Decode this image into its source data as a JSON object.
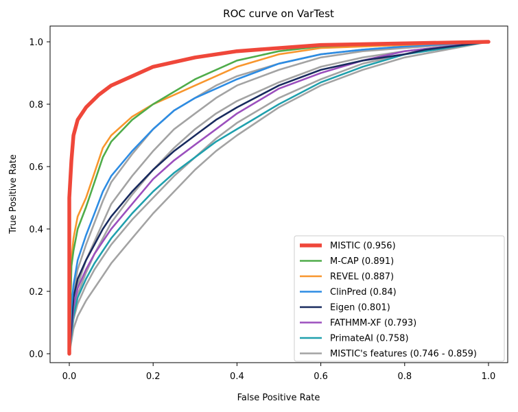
{
  "chart_data": {
    "type": "line",
    "title": "ROC curve on VarTest",
    "xlabel": "False Positive Rate",
    "ylabel": "True Positive Rate",
    "xlim": [
      -0.05,
      1.05
    ],
    "ylim": [
      -0.02,
      1.05
    ],
    "xticks": [
      0.0,
      0.2,
      0.4,
      0.6,
      0.8,
      1.0
    ],
    "xtick_labels": [
      "0.0",
      "0.2",
      "0.4",
      "0.6",
      "0.8",
      "1.0"
    ],
    "yticks": [
      0.0,
      0.2,
      0.4,
      0.6,
      0.8,
      1.0
    ],
    "ytick_labels": [
      "0.0",
      "0.2",
      "0.4",
      "0.6",
      "0.8",
      "1.0"
    ],
    "grid": false,
    "legend_position": "lower-right",
    "series": [
      {
        "name": "MISTIC (0.956)",
        "color": "#ef473a",
        "x": [
          0,
          0,
          0.005,
          0.01,
          0.02,
          0.04,
          0.07,
          0.1,
          0.15,
          0.2,
          0.3,
          0.4,
          0.5,
          0.6,
          0.8,
          1.0
        ],
        "y": [
          0,
          0.5,
          0.62,
          0.7,
          0.75,
          0.79,
          0.83,
          0.86,
          0.89,
          0.92,
          0.95,
          0.97,
          0.98,
          0.99,
          0.995,
          1.0
        ]
      },
      {
        "name": "M-CAP (0.891)",
        "color": "#4fac4a",
        "x": [
          0,
          0.005,
          0.01,
          0.02,
          0.04,
          0.06,
          0.08,
          0.1,
          0.15,
          0.2,
          0.25,
          0.3,
          0.35,
          0.4,
          0.5,
          0.6,
          0.7,
          0.8,
          1.0
        ],
        "y": [
          0,
          0.28,
          0.33,
          0.4,
          0.47,
          0.55,
          0.63,
          0.68,
          0.75,
          0.8,
          0.84,
          0.88,
          0.91,
          0.94,
          0.97,
          0.985,
          0.99,
          0.995,
          1.0
        ]
      },
      {
        "name": "REVEL (0.887)",
        "color": "#f8962d",
        "x": [
          0,
          0.005,
          0.01,
          0.02,
          0.04,
          0.06,
          0.08,
          0.1,
          0.15,
          0.2,
          0.25,
          0.3,
          0.35,
          0.4,
          0.5,
          0.6,
          0.7,
          0.8,
          1.0
        ],
        "y": [
          0,
          0.3,
          0.37,
          0.44,
          0.5,
          0.58,
          0.66,
          0.7,
          0.76,
          0.8,
          0.83,
          0.86,
          0.89,
          0.92,
          0.96,
          0.98,
          0.985,
          0.99,
          1.0
        ]
      },
      {
        "name": "ClinPred (0.84)",
        "color": "#2d8ce3",
        "x": [
          0,
          0.005,
          0.01,
          0.02,
          0.04,
          0.06,
          0.08,
          0.1,
          0.15,
          0.2,
          0.25,
          0.3,
          0.35,
          0.4,
          0.5,
          0.6,
          0.7,
          0.8,
          1.0
        ],
        "y": [
          0,
          0.15,
          0.22,
          0.3,
          0.38,
          0.45,
          0.52,
          0.57,
          0.65,
          0.72,
          0.78,
          0.82,
          0.85,
          0.88,
          0.93,
          0.96,
          0.975,
          0.985,
          1.0
        ]
      },
      {
        "name": "Eigen (0.801)",
        "color": "#182a5e",
        "x": [
          0,
          0.01,
          0.02,
          0.04,
          0.06,
          0.08,
          0.1,
          0.15,
          0.2,
          0.25,
          0.3,
          0.35,
          0.4,
          0.5,
          0.6,
          0.7,
          0.8,
          0.85,
          1.0
        ],
        "y": [
          0,
          0.18,
          0.24,
          0.3,
          0.35,
          0.4,
          0.44,
          0.52,
          0.59,
          0.65,
          0.7,
          0.75,
          0.79,
          0.86,
          0.91,
          0.94,
          0.96,
          0.975,
          1.0
        ]
      },
      {
        "name": "FATHMM-XF (0.793)",
        "color": "#9b4fbd",
        "x": [
          0,
          0.01,
          0.02,
          0.04,
          0.06,
          0.08,
          0.1,
          0.15,
          0.2,
          0.25,
          0.3,
          0.35,
          0.4,
          0.5,
          0.6,
          0.7,
          0.8,
          1.0
        ],
        "y": [
          0,
          0.15,
          0.21,
          0.27,
          0.32,
          0.36,
          0.4,
          0.48,
          0.56,
          0.62,
          0.67,
          0.72,
          0.77,
          0.85,
          0.9,
          0.94,
          0.97,
          1.0
        ]
      },
      {
        "name": "PrimateAI (0.758)",
        "color": "#1fa0ad",
        "x": [
          0,
          0.01,
          0.02,
          0.04,
          0.06,
          0.08,
          0.1,
          0.15,
          0.2,
          0.25,
          0.3,
          0.35,
          0.4,
          0.45,
          0.5,
          0.6,
          0.7,
          0.8,
          1.0
        ],
        "y": [
          0,
          0.12,
          0.18,
          0.24,
          0.29,
          0.33,
          0.37,
          0.45,
          0.52,
          0.58,
          0.63,
          0.68,
          0.72,
          0.76,
          0.8,
          0.87,
          0.92,
          0.96,
          1.0
        ]
      },
      {
        "name": "MISTIC's features (0.746 - 0.859)",
        "color": "#a3a3a3",
        "x": [
          0,
          0.01,
          0.02,
          0.04,
          0.06,
          0.08,
          0.1,
          0.15,
          0.2,
          0.25,
          0.3,
          0.35,
          0.4,
          0.5,
          0.6,
          0.7,
          0.8,
          1.0
        ],
        "y": [
          0,
          0.2,
          0.27,
          0.35,
          0.42,
          0.49,
          0.55,
          0.64,
          0.72,
          0.78,
          0.82,
          0.86,
          0.89,
          0.93,
          0.96,
          0.975,
          0.985,
          1.0
        ]
      },
      {
        "name": "",
        "color": "#a3a3a3",
        "x": [
          0,
          0.01,
          0.02,
          0.04,
          0.06,
          0.08,
          0.1,
          0.15,
          0.2,
          0.25,
          0.3,
          0.35,
          0.4,
          0.5,
          0.6,
          0.7,
          0.8,
          1.0
        ],
        "y": [
          0,
          0.16,
          0.22,
          0.3,
          0.36,
          0.42,
          0.48,
          0.57,
          0.65,
          0.72,
          0.77,
          0.82,
          0.86,
          0.91,
          0.95,
          0.97,
          0.98,
          1.0
        ]
      },
      {
        "name": "",
        "color": "#a3a3a3",
        "x": [
          0,
          0.01,
          0.02,
          0.04,
          0.06,
          0.08,
          0.1,
          0.15,
          0.2,
          0.25,
          0.3,
          0.35,
          0.4,
          0.5,
          0.6,
          0.7,
          0.8,
          1.0
        ],
        "y": [
          0,
          0.13,
          0.19,
          0.26,
          0.32,
          0.37,
          0.42,
          0.51,
          0.59,
          0.66,
          0.72,
          0.77,
          0.81,
          0.87,
          0.92,
          0.95,
          0.97,
          1.0
        ]
      },
      {
        "name": "",
        "color": "#a3a3a3",
        "x": [
          0,
          0.01,
          0.02,
          0.04,
          0.06,
          0.08,
          0.1,
          0.15,
          0.2,
          0.25,
          0.3,
          0.35,
          0.4,
          0.5,
          0.6,
          0.7,
          0.8,
          1.0
        ],
        "y": [
          0,
          0.11,
          0.16,
          0.22,
          0.27,
          0.31,
          0.35,
          0.43,
          0.5,
          0.57,
          0.63,
          0.69,
          0.74,
          0.82,
          0.88,
          0.93,
          0.96,
          1.0
        ]
      },
      {
        "name": "",
        "color": "#a3a3a3",
        "x": [
          0,
          0.01,
          0.02,
          0.04,
          0.06,
          0.08,
          0.1,
          0.15,
          0.2,
          0.25,
          0.3,
          0.35,
          0.4,
          0.5,
          0.6,
          0.7,
          0.8,
          1.0
        ],
        "y": [
          0,
          0.08,
          0.12,
          0.17,
          0.21,
          0.25,
          0.29,
          0.37,
          0.45,
          0.52,
          0.59,
          0.65,
          0.7,
          0.79,
          0.86,
          0.91,
          0.95,
          1.0
        ]
      }
    ]
  }
}
